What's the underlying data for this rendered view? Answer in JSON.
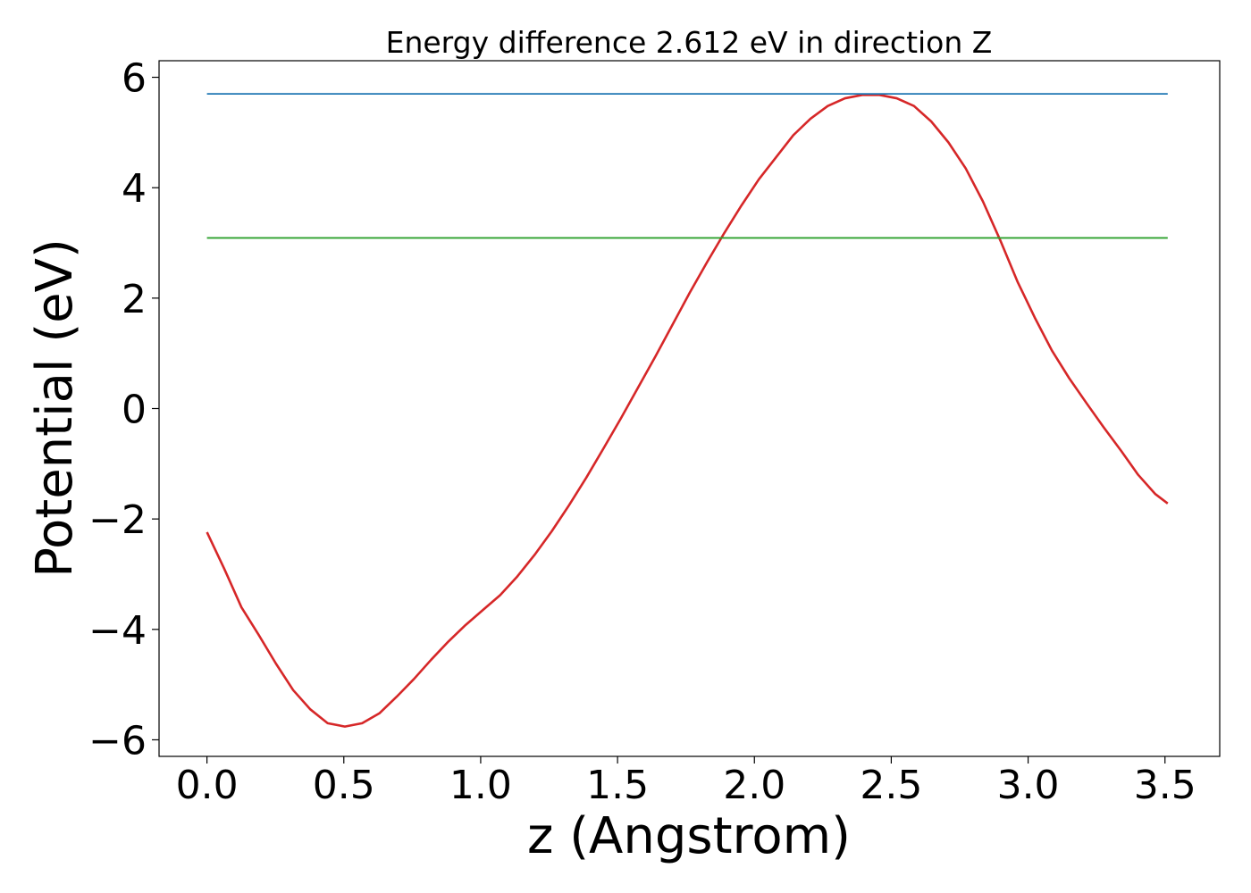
{
  "chart_data": {
    "type": "line",
    "title": "Energy difference 2.612 eV in direction Z",
    "xlabel": "z (Angstrom)",
    "ylabel": "Potential (eV)",
    "xlim": [
      -0.175,
      3.7
    ],
    "ylim": [
      -6.3,
      6.3
    ],
    "xticks": [
      0.0,
      0.5,
      1.0,
      1.5,
      2.0,
      2.5,
      3.0,
      3.5
    ],
    "xtick_labels": [
      "0.0",
      "0.5",
      "1.0",
      "1.5",
      "2.0",
      "2.5",
      "3.0",
      "3.5"
    ],
    "yticks": [
      -6,
      -4,
      -2,
      0,
      2,
      4,
      6
    ],
    "ytick_labels": [
      "−6",
      "−4",
      "−2",
      "0",
      "2",
      "4",
      "6"
    ],
    "grid": false,
    "series": [
      {
        "color": "#d62728",
        "x": [
          0.0,
          0.063,
          0.126,
          0.189,
          0.252,
          0.315,
          0.378,
          0.441,
          0.504,
          0.567,
          0.63,
          0.693,
          0.756,
          0.819,
          0.882,
          0.945,
          1.008,
          1.071,
          1.134,
          1.197,
          1.26,
          1.323,
          1.386,
          1.449,
          1.512,
          1.575,
          1.638,
          1.701,
          1.764,
          1.827,
          1.89,
          1.953,
          2.016,
          2.079,
          2.142,
          2.205,
          2.268,
          2.331,
          2.394,
          2.457,
          2.52,
          2.583,
          2.646,
          2.709,
          2.772,
          2.835,
          2.898,
          2.961,
          3.024,
          3.087,
          3.15,
          3.213,
          3.276,
          3.339,
          3.402,
          3.465,
          3.51
        ],
        "y": [
          -2.24,
          -2.9,
          -3.6,
          -4.1,
          -4.62,
          -5.1,
          -5.45,
          -5.7,
          -5.76,
          -5.7,
          -5.52,
          -5.22,
          -4.9,
          -4.55,
          -4.22,
          -3.92,
          -3.65,
          -3.38,
          -3.04,
          -2.65,
          -2.22,
          -1.75,
          -1.25,
          -0.72,
          -0.18,
          0.38,
          0.94,
          1.52,
          2.1,
          2.65,
          3.18,
          3.68,
          4.15,
          4.55,
          4.95,
          5.25,
          5.48,
          5.62,
          5.68,
          5.68,
          5.62,
          5.48,
          5.2,
          4.82,
          4.35,
          3.75,
          3.05,
          2.3,
          1.65,
          1.05,
          0.55,
          0.1,
          -0.34,
          -0.76,
          -1.2,
          -1.55,
          -1.72
        ]
      },
      {
        "color": "#1f77b4",
        "x": [
          0.0,
          3.51
        ],
        "y": [
          5.7,
          5.7
        ]
      },
      {
        "color": "#2ca02c",
        "x": [
          0.0,
          3.51
        ],
        "y": [
          3.09,
          3.09
        ]
      }
    ]
  }
}
